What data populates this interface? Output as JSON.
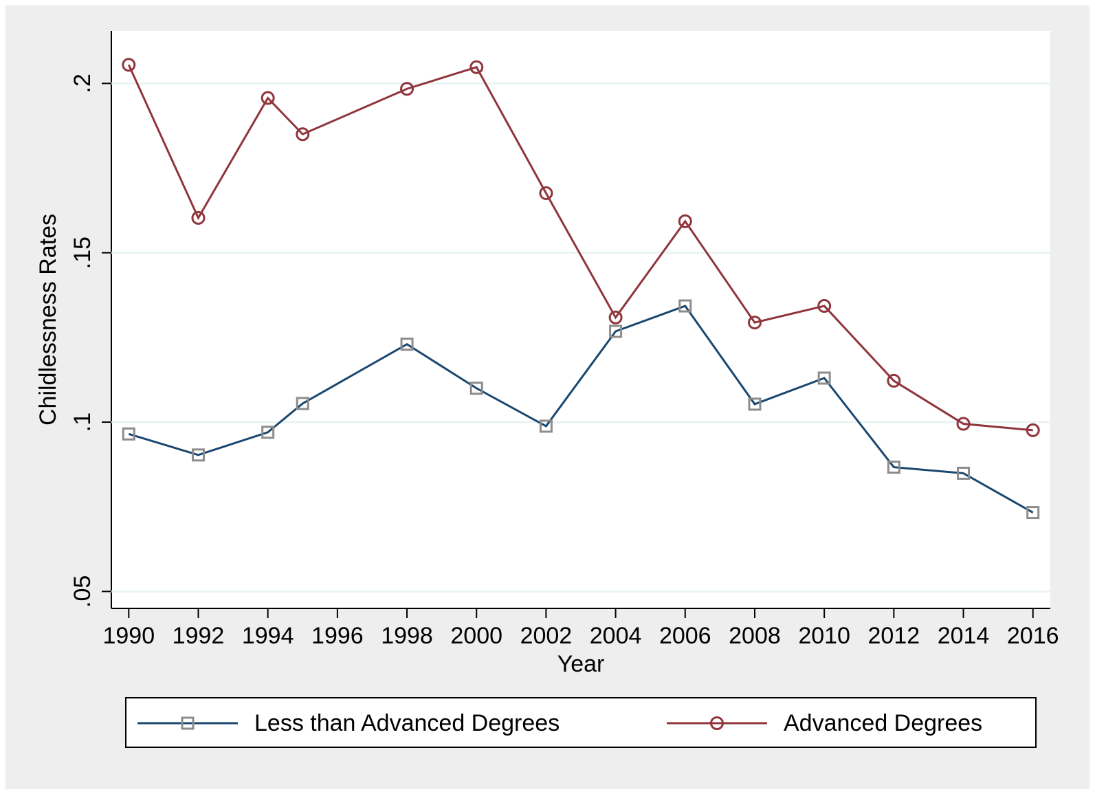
{
  "chart_data": {
    "type": "line",
    "x_label": "Year",
    "y_label": "Childlessness Rates",
    "x": [
      1990,
      1992,
      1994,
      1995,
      1998,
      2000,
      2002,
      2004,
      2006,
      2008,
      2010,
      2012,
      2014,
      2016
    ],
    "series": [
      {
        "name": "Less than Advanced Degrees",
        "color": "#1a476f",
        "marker": "square",
        "marker_color": "#8c8c8c",
        "values": [
          0.0965,
          0.0903,
          0.097,
          0.1055,
          0.123,
          0.11,
          0.0988,
          0.1268,
          0.1343,
          0.1053,
          0.113,
          0.0867,
          0.0849,
          0.0733
        ]
      },
      {
        "name": "Advanced Degrees",
        "color": "#90353b",
        "marker": "circle",
        "marker_color": "#90353b",
        "values": [
          0.2055,
          0.1603,
          0.1957,
          0.185,
          0.1984,
          0.2048,
          0.1676,
          0.1309,
          0.1593,
          0.1294,
          0.1343,
          0.1122,
          0.0995,
          0.0976
        ]
      }
    ],
    "xlim": [
      1989.5,
      2016.5
    ],
    "xticks": [
      1990,
      1992,
      1994,
      1996,
      1998,
      2000,
      2002,
      2004,
      2006,
      2008,
      2010,
      2012,
      2014,
      2016
    ],
    "ylim": [
      0.045,
      0.2155
    ],
    "yticks": [
      {
        "value": 0.05,
        "label": ".05"
      },
      {
        "value": 0.1,
        "label": ".1"
      },
      {
        "value": 0.15,
        "label": ".15"
      },
      {
        "value": 0.2,
        "label": ".2"
      }
    ],
    "grid": true,
    "legend": "bottom"
  }
}
